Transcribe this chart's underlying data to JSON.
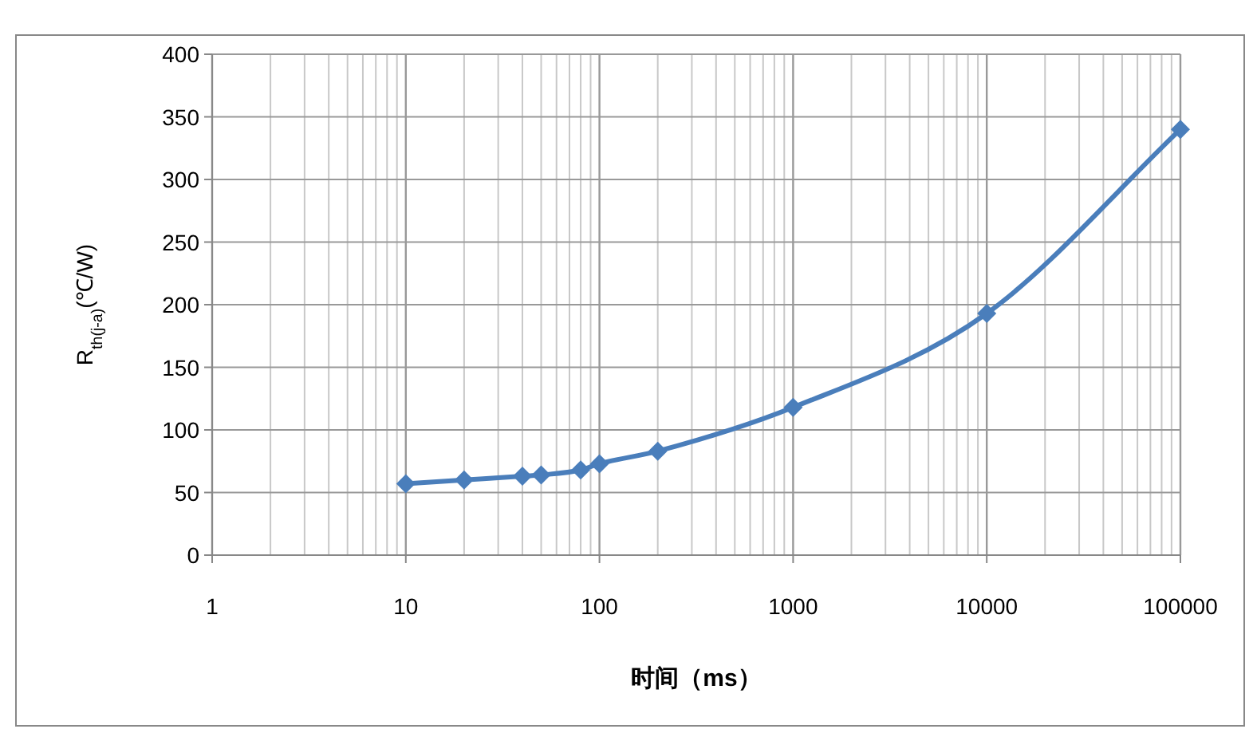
{
  "chart_data": {
    "type": "line",
    "xlabel": "时间（ms）",
    "ylabel": "R$_{th(j-a)}$(℃/W)",
    "log": "x",
    "x": [
      10,
      20,
      40,
      50,
      80,
      100,
      200,
      1000,
      10000,
      100000
    ],
    "series": [
      {
        "color": "#4a7ebb",
        "values": [
          57,
          60,
          63,
          64,
          68,
          73,
          83,
          118,
          193,
          340
        ]
      }
    ],
    "xlim": [
      1,
      100000
    ],
    "xticks": [
      1,
      10,
      100,
      1000,
      10000,
      100000
    ],
    "ylim": [
      0,
      400
    ],
    "yticks": [
      0,
      50,
      100,
      150,
      200,
      250,
      300,
      350,
      400
    ],
    "grid": true,
    "marker": "diamond",
    "line_style": "solid"
  }
}
